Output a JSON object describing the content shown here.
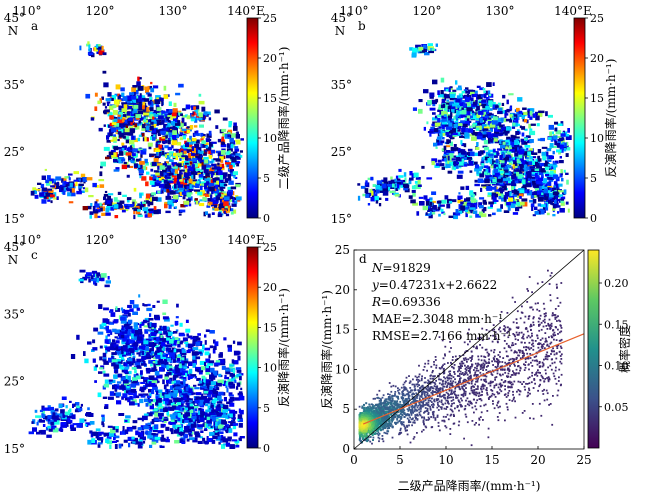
{
  "colors": {
    "jet": [
      "#00007f",
      "#0000ff",
      "#007fff",
      "#00ffff",
      "#7fff7f",
      "#ffff00",
      "#ff7f00",
      "#ff0000",
      "#7f0000"
    ],
    "viridis": [
      "#440154",
      "#3b528b",
      "#21918c",
      "#5ec962",
      "#fde725"
    ],
    "fit_line": "#e8602c",
    "ref_line": "#000000"
  },
  "map_axes": {
    "lon_ticks": [
      "110°",
      "120°",
      "130°",
      "140°E"
    ],
    "lat_ticks": [
      "45°",
      "35°",
      "25°",
      "15°"
    ],
    "lat_suffix": "N",
    "lon_range": [
      110,
      140
    ],
    "lat_range": [
      15,
      45
    ]
  },
  "panels": [
    {
      "letter": "a",
      "colorbar_label": "二级产品降雨率/(mm·h⁻¹)",
      "colorbar_ticks": [
        "25",
        "20",
        "15",
        "10",
        "5",
        "0"
      ]
    },
    {
      "letter": "b",
      "colorbar_label": "反演降雨率/(mm·h⁻¹)",
      "colorbar_ticks": [
        "25",
        "20",
        "15",
        "10",
        "5",
        "0"
      ]
    },
    {
      "letter": "c",
      "colorbar_label": "反演降雨率/(mm·h⁻¹)",
      "colorbar_ticks": [
        "25",
        "20",
        "15",
        "10",
        "5",
        "0"
      ]
    }
  ],
  "chart_data": [
    {
      "type": "heatmap",
      "panel": "a",
      "colorbar_range": [
        0,
        25
      ],
      "colorbar_label": "二级产品降雨率/(mm·h⁻¹)",
      "lon_range": [
        110,
        140
      ],
      "lat_range": [
        15,
        45
      ]
    },
    {
      "type": "heatmap",
      "panel": "b",
      "colorbar_range": [
        0,
        25
      ],
      "colorbar_label": "反演降雨率/(mm·h⁻¹)",
      "lon_range": [
        110,
        140
      ],
      "lat_range": [
        15,
        45
      ]
    },
    {
      "type": "heatmap",
      "panel": "c",
      "colorbar_range": [
        0,
        25
      ],
      "colorbar_label": "反演降雨率/(mm·h⁻¹)",
      "lon_range": [
        110,
        140
      ],
      "lat_range": [
        15,
        45
      ]
    },
    {
      "type": "scatter",
      "panel": "d",
      "xlabel": "二级产品降雨率/(mm·h⁻¹)",
      "ylabel": "反演降雨率/(mm·h⁻¹)",
      "xlim": [
        0,
        25
      ],
      "ylim": [
        0,
        25
      ],
      "x_ticks": [
        "0",
        "5",
        "10",
        "15",
        "20",
        "25"
      ],
      "y_ticks": [
        "0",
        "5",
        "10",
        "15",
        "20",
        "25"
      ],
      "colorbar_label": "概率密度",
      "colorbar_ticks": [
        "0.20",
        "0.15",
        "0.10",
        "0.05"
      ],
      "colorbar_values": [
        0.2,
        0.15,
        0.1,
        0.05
      ],
      "colorbar_range": [
        0,
        0.24
      ],
      "fit": {
        "slope": 0.47231,
        "intercept": 2.6622
      },
      "reference_line": "1:1",
      "stats": {
        "n_prefix": "N",
        "n_value": "=91829",
        "eq_prefix": "y",
        "eq_mid": "=0.47231",
        "eq_x": "x",
        "eq_tail": "+2.6622",
        "r_prefix": "R",
        "r_value": "=0.69336",
        "mae": "MAE=2.3048 mm·h⁻¹",
        "rmse": "RMSE=2.7166 mm·h⁻¹"
      }
    }
  ]
}
